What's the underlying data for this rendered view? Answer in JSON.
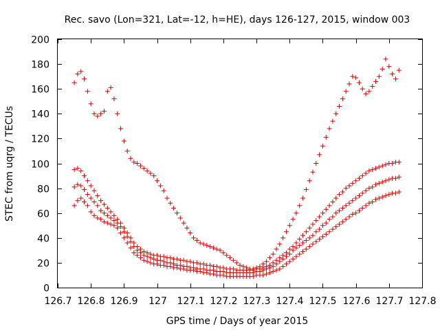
{
  "chart_data": {
    "type": "scatter",
    "title": "Rec. savo (Lon=321, Lat=-12, h=HE), days 126-127, 2015, window 003",
    "xlabel": "GPS time / Days of year 2015",
    "ylabel": "STEC from uqrg / TECUs",
    "xlim": [
      126.7,
      127.8
    ],
    "ylim": [
      0,
      200
    ],
    "xticks": [
      "126.7",
      "126.8",
      "126.9",
      "127",
      "127.1",
      "127.2",
      "127.3",
      "127.4",
      "127.5",
      "127.6",
      "127.7",
      "127.8"
    ],
    "yticks": [
      "0",
      "20",
      "40",
      "60",
      "80",
      "100",
      "120",
      "140",
      "160",
      "180",
      "200"
    ],
    "grid": false,
    "marker": "+",
    "color": "#cc0000",
    "series": [
      {
        "x": [
          126.75,
          126.76,
          126.77,
          126.78,
          126.79,
          126.8,
          126.81,
          126.82,
          126.83,
          126.84,
          126.85,
          126.86,
          126.87,
          126.88,
          126.89,
          126.9,
          126.91,
          126.92,
          126.93,
          126.94,
          126.95,
          126.96,
          126.97,
          126.98,
          126.99,
          127.0,
          127.01,
          127.02,
          127.03,
          127.04,
          127.05,
          127.06,
          127.07,
          127.08,
          127.09,
          127.1,
          127.11,
          127.12,
          127.13,
          127.14,
          127.15,
          127.16,
          127.17,
          127.18,
          127.19,
          127.2,
          127.21,
          127.22,
          127.23,
          127.24,
          127.25,
          127.26,
          127.27,
          127.28,
          127.29,
          127.3,
          127.31,
          127.32,
          127.33,
          127.34,
          127.35,
          127.36,
          127.37,
          127.38,
          127.39,
          127.4,
          127.41,
          127.42,
          127.43,
          127.44,
          127.45,
          127.46,
          127.47,
          127.48,
          127.49,
          127.5,
          127.51,
          127.52,
          127.53,
          127.54,
          127.55,
          127.56,
          127.57,
          127.58,
          127.59,
          127.6,
          127.61,
          127.62,
          127.63,
          127.64,
          127.65,
          127.66,
          127.67,
          127.68,
          127.69,
          127.7,
          127.71,
          127.72,
          127.73
        ],
        "y": [
          66,
          70,
          72,
          69,
          66,
          61,
          58,
          56,
          55,
          53,
          52,
          51,
          50,
          48,
          44,
          40,
          36,
          32,
          28,
          26,
          24,
          22,
          21,
          20,
          19,
          19,
          18,
          18,
          17,
          17,
          16,
          16,
          15,
          15,
          14,
          14,
          14,
          13,
          13,
          12,
          12,
          11,
          11,
          10,
          10,
          10,
          9,
          9,
          9,
          9,
          9,
          9,
          9,
          9,
          9,
          10,
          10,
          10,
          11,
          12,
          13,
          14,
          15,
          17,
          19,
          21,
          23,
          25,
          27,
          29,
          31,
          33,
          35,
          37,
          39,
          41,
          43,
          45,
          47,
          49,
          51,
          53,
          55,
          57,
          59,
          60,
          62,
          64,
          66,
          68,
          69,
          71,
          72,
          73,
          74,
          75,
          76,
          76,
          77
        ]
      },
      {
        "x": [
          126.75,
          126.76,
          126.77,
          126.78,
          126.79,
          126.8,
          126.81,
          126.82,
          126.83,
          126.84,
          126.85,
          126.86,
          126.87,
          126.88,
          126.89,
          126.9,
          126.91,
          126.92,
          126.93,
          126.94,
          126.95,
          126.96,
          126.97,
          126.98,
          126.99,
          127.0,
          127.01,
          127.02,
          127.03,
          127.04,
          127.05,
          127.06,
          127.07,
          127.08,
          127.09,
          127.1,
          127.11,
          127.12,
          127.13,
          127.14,
          127.15,
          127.16,
          127.17,
          127.18,
          127.19,
          127.2,
          127.21,
          127.22,
          127.23,
          127.24,
          127.25,
          127.26,
          127.27,
          127.28,
          127.29,
          127.3,
          127.31,
          127.32,
          127.33,
          127.34,
          127.35,
          127.36,
          127.37,
          127.38,
          127.39,
          127.4,
          127.41,
          127.42,
          127.43,
          127.44,
          127.45,
          127.46,
          127.47,
          127.48,
          127.49,
          127.5,
          127.51,
          127.52,
          127.53,
          127.54,
          127.55,
          127.56,
          127.57,
          127.58,
          127.59,
          127.6,
          127.61,
          127.62,
          127.63,
          127.64,
          127.65,
          127.66,
          127.67,
          127.68,
          127.69,
          127.7,
          127.71,
          127.72,
          127.73
        ],
        "y": [
          81,
          83,
          82,
          79,
          75,
          72,
          69,
          66,
          62,
          60,
          58,
          56,
          54,
          52,
          49,
          45,
          41,
          37,
          33,
          30,
          28,
          26,
          25,
          24,
          23,
          22,
          22,
          21,
          20,
          20,
          19,
          18,
          18,
          17,
          17,
          16,
          16,
          15,
          15,
          15,
          14,
          14,
          14,
          13,
          13,
          13,
          12,
          12,
          12,
          12,
          12,
          12,
          12,
          12,
          12,
          13,
          13,
          14,
          15,
          16,
          17,
          19,
          21,
          23,
          25,
          27,
          30,
          32,
          34,
          36,
          38,
          40,
          42,
          45,
          47,
          50,
          52,
          55,
          57,
          60,
          62,
          64,
          66,
          68,
          70,
          72,
          74,
          76,
          78,
          80,
          81,
          83,
          84,
          85,
          86,
          87,
          88,
          88,
          89
        ]
      },
      {
        "x": [
          126.75,
          126.76,
          126.77,
          126.78,
          126.79,
          126.8,
          126.81,
          126.82,
          126.83,
          126.84,
          126.85,
          126.86,
          126.87,
          126.88,
          126.89,
          126.9,
          126.91,
          126.92,
          126.93,
          126.94,
          126.95,
          126.96,
          126.97,
          126.98,
          126.99,
          127.0,
          127.01,
          127.02,
          127.03,
          127.04,
          127.05,
          127.06,
          127.07,
          127.08,
          127.09,
          127.1,
          127.11,
          127.12,
          127.13,
          127.14,
          127.15,
          127.16,
          127.17,
          127.18,
          127.19,
          127.2,
          127.21,
          127.22,
          127.23,
          127.24,
          127.25,
          127.26,
          127.27,
          127.28,
          127.29,
          127.3,
          127.31,
          127.32,
          127.33,
          127.34,
          127.35,
          127.36,
          127.37,
          127.38,
          127.39,
          127.4,
          127.41,
          127.42,
          127.43,
          127.44,
          127.45,
          127.46,
          127.47,
          127.48,
          127.49,
          127.5,
          127.51,
          127.52,
          127.53,
          127.54,
          127.55,
          127.56,
          127.57,
          127.58,
          127.59,
          127.6,
          127.61,
          127.62,
          127.63,
          127.64,
          127.65,
          127.66,
          127.67,
          127.68,
          127.69,
          127.7,
          127.71,
          127.72,
          127.73
        ],
        "y": [
          95,
          96,
          94,
          90,
          86,
          82,
          78,
          74,
          70,
          67,
          64,
          61,
          58,
          55,
          52,
          48,
          44,
          40,
          36,
          33,
          31,
          29,
          28,
          27,
          26,
          26,
          25,
          25,
          24,
          24,
          23,
          23,
          22,
          22,
          21,
          21,
          20,
          20,
          19,
          19,
          18,
          18,
          17,
          17,
          16,
          16,
          15,
          15,
          15,
          14,
          14,
          14,
          14,
          14,
          14,
          15,
          15,
          16,
          17,
          18,
          20,
          22,
          24,
          26,
          28,
          31,
          33,
          36,
          39,
          42,
          45,
          48,
          51,
          54,
          57,
          60,
          63,
          66,
          69,
          72,
          75,
          77,
          80,
          82,
          84,
          86,
          88,
          90,
          92,
          94,
          95,
          96,
          97,
          98,
          99,
          100,
          100,
          101,
          101
        ]
      },
      {
        "x": [
          126.75,
          126.76,
          126.77,
          126.78,
          126.79,
          126.8,
          126.81,
          126.82,
          126.83,
          126.84,
          126.85,
          126.86,
          126.87,
          126.88,
          126.89,
          126.9,
          126.91,
          126.92,
          126.93,
          126.94,
          126.95,
          126.96,
          126.97,
          126.98,
          126.99,
          127.0,
          127.01,
          127.02,
          127.03,
          127.04,
          127.05,
          127.06,
          127.07,
          127.08,
          127.09,
          127.1,
          127.11,
          127.12,
          127.13,
          127.14,
          127.15,
          127.16,
          127.17,
          127.18,
          127.19,
          127.2,
          127.21,
          127.22,
          127.23,
          127.24,
          127.25,
          127.26,
          127.27,
          127.28,
          127.29,
          127.3,
          127.31,
          127.32,
          127.33,
          127.34,
          127.35,
          127.36,
          127.37,
          127.38,
          127.39,
          127.4,
          127.41,
          127.42,
          127.43,
          127.44,
          127.45,
          127.46,
          127.47,
          127.48,
          127.49,
          127.5,
          127.51,
          127.52,
          127.53,
          127.54,
          127.55,
          127.56,
          127.57,
          127.58,
          127.59,
          127.6,
          127.61,
          127.62,
          127.63,
          127.64,
          127.65,
          127.66,
          127.67,
          127.68,
          127.69,
          127.7,
          127.71,
          127.72,
          127.73
        ],
        "y": [
          165,
          172,
          174,
          168,
          158,
          148,
          140,
          138,
          140,
          142,
          158,
          161,
          152,
          140,
          128,
          118,
          110,
          104,
          101,
          100,
          98,
          96,
          94,
          92,
          90,
          86,
          82,
          78,
          72,
          68,
          64,
          60,
          56,
          52,
          48,
          44,
          40,
          38,
          36,
          35,
          34,
          33,
          32,
          31,
          30,
          28,
          26,
          24,
          22,
          20,
          18,
          17,
          16,
          15,
          15,
          16,
          17,
          19,
          21,
          24,
          27,
          31,
          35,
          40,
          45,
          50,
          55,
          60,
          66,
          72,
          79,
          86,
          93,
          100,
          107,
          114,
          121,
          128,
          134,
          140,
          146,
          152,
          158,
          164,
          170,
          169,
          165,
          160,
          156,
          158,
          162,
          166,
          170,
          176,
          184,
          178,
          172,
          168,
          175
        ]
      }
    ]
  }
}
